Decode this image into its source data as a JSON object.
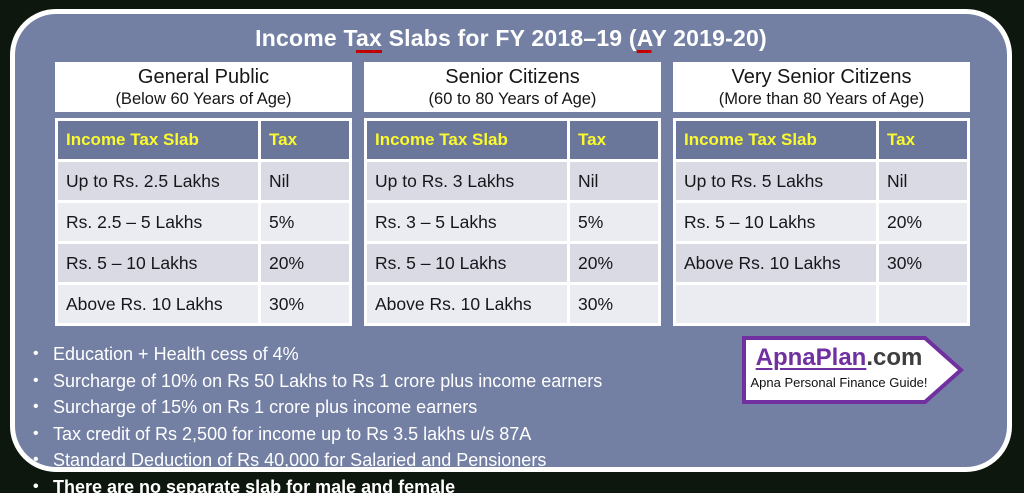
{
  "title": {
    "full": "Income Tax Slabs for FY 2018–19 (AY 2019-20)",
    "parts": [
      {
        "text": "Income T"
      },
      {
        "text": "ax",
        "mark": true
      },
      {
        "text": " Slabs for FY 2018–19 ("
      },
      {
        "text": "A",
        "mark": true
      },
      {
        "text": "Y 2019-20)"
      }
    ]
  },
  "tables": [
    {
      "id": "general-public",
      "title": "General Public",
      "subtitle": "(Below 60 Years of Age)",
      "columns": [
        "Income Tax Slab",
        "Tax"
      ],
      "rows": [
        [
          "Up to Rs. 2.5 Lakhs",
          "Nil"
        ],
        [
          "Rs. 2.5 – 5 Lakhs",
          "5%"
        ],
        [
          "Rs. 5 – 10 Lakhs",
          "20%"
        ],
        [
          "Above Rs. 10 Lakhs",
          "30%"
        ]
      ]
    },
    {
      "id": "senior-citizens",
      "title": "Senior Citizens",
      "subtitle": "(60 to 80 Years of Age)",
      "columns": [
        "Income Tax Slab",
        "Tax"
      ],
      "rows": [
        [
          "Up to Rs. 3 Lakhs",
          "Nil"
        ],
        [
          "Rs. 3 – 5 Lakhs",
          "5%"
        ],
        [
          "Rs. 5 – 10 Lakhs",
          "20%"
        ],
        [
          "Above Rs. 10 Lakhs",
          "30%"
        ]
      ]
    },
    {
      "id": "very-senior-citizens",
      "title": "Very Senior Citizens",
      "subtitle": "(More than 80 Years of Age)",
      "columns": [
        "Income Tax Slab",
        "Tax"
      ],
      "rows": [
        [
          "Up to Rs. 5 Lakhs",
          "Nil"
        ],
        [
          "Rs. 5 – 10 Lakhs",
          "20%"
        ],
        [
          "Above Rs. 10 Lakhs",
          "30%"
        ],
        [
          "",
          ""
        ]
      ]
    }
  ],
  "notes": [
    {
      "text": "Education + Health cess of 4%",
      "bold": false
    },
    {
      "text": "Surcharge of 10% on Rs 50 Lakhs to Rs 1 crore plus income earners",
      "bold": false
    },
    {
      "text": "Surcharge of 15% on Rs 1 crore plus income earners",
      "bold": false
    },
    {
      "text": "Tax credit of Rs 2,500 for income up to Rs 3.5 lakhs u/s 87A",
      "bold": false
    },
    {
      "text": "Standard Deduction of Rs 40,000 for Salaried and Pensioners",
      "bold": false
    },
    {
      "text": "There are no separate slab for male and female",
      "bold": true
    }
  ],
  "logo": {
    "brand_primary": "ApnaPlan",
    "brand_suffix": ".com",
    "tagline": "Apna Personal Finance Guide!"
  },
  "colors": {
    "outer_background": "#0d170d",
    "slide_background": "#7380A4",
    "table_header_background": "#6B769B",
    "table_header_text": "#FAFA2E",
    "row_band_dark": "#D9DAE3",
    "row_band_light": "#EBECF2",
    "title_text": "#FFFFFF",
    "spellcheck_mark": "#C00000",
    "logo_purple": "#7030A0",
    "logo_suffix_gray": "#3E3E3E"
  }
}
